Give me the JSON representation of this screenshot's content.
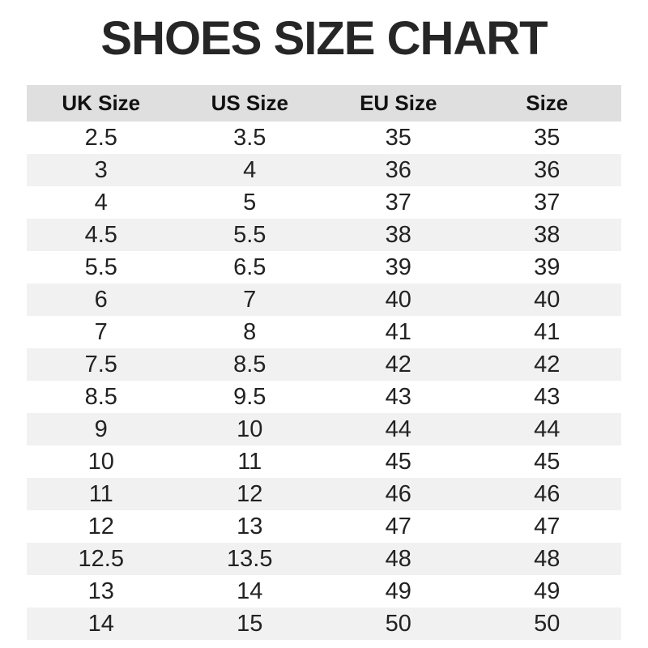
{
  "chart_data": {
    "type": "table",
    "title": "SHOES SIZE CHART",
    "columns": [
      "UK Size",
      "US Size",
      "EU Size",
      "Size"
    ],
    "rows": [
      [
        "2.5",
        "3.5",
        "35",
        "35"
      ],
      [
        "3",
        "4",
        "36",
        "36"
      ],
      [
        "4",
        "5",
        "37",
        "37"
      ],
      [
        "4.5",
        "5.5",
        "38",
        "38"
      ],
      [
        "5.5",
        "6.5",
        "39",
        "39"
      ],
      [
        "6",
        "7",
        "40",
        "40"
      ],
      [
        "7",
        "8",
        "41",
        "41"
      ],
      [
        "7.5",
        "8.5",
        "42",
        "42"
      ],
      [
        "8.5",
        "9.5",
        "43",
        "43"
      ],
      [
        "9",
        "10",
        "44",
        "44"
      ],
      [
        "10",
        "11",
        "45",
        "45"
      ],
      [
        "11",
        "12",
        "46",
        "46"
      ],
      [
        "12",
        "13",
        "47",
        "47"
      ],
      [
        "12.5",
        "13.5",
        "48",
        "48"
      ],
      [
        "13",
        "14",
        "49",
        "49"
      ],
      [
        "14",
        "15",
        "50",
        "50"
      ]
    ],
    "layout": {
      "striping": "alternate rows shaded, first data row white",
      "grid": "off",
      "text_align": "center"
    },
    "colors": {
      "header_bg": "#dfdfdf",
      "alt_row_bg": "#f1f1f1",
      "title_text": "#262626",
      "header_text": "#111111",
      "body_text": "#222222"
    }
  }
}
